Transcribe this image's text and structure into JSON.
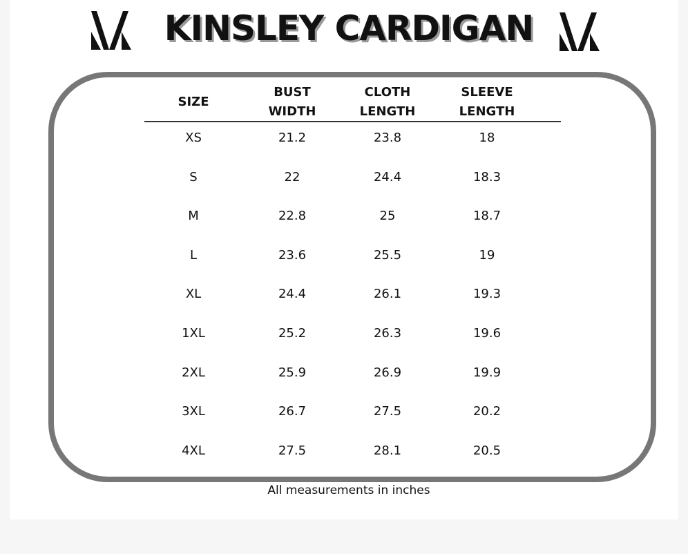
{
  "header": {
    "title": "KINSLEY CARDIGAN"
  },
  "table": {
    "columns": [
      "SIZE",
      "BUST WIDTH",
      "CLOTH LENGTH",
      "SLEEVE LENGTH"
    ],
    "rows": [
      [
        "XS",
        "21.2",
        "23.8",
        "18"
      ],
      [
        "S",
        "22",
        "24.4",
        "18.3"
      ],
      [
        "M",
        "22.8",
        "25",
        "18.7"
      ],
      [
        "L",
        "23.6",
        "25.5",
        "19"
      ],
      [
        "XL",
        "24.4",
        "26.1",
        "19.3"
      ],
      [
        "1XL",
        "25.2",
        "26.3",
        "19.6"
      ],
      [
        "2XL",
        "25.9",
        "26.9",
        "19.9"
      ],
      [
        "3XL",
        "26.7",
        "27.5",
        "20.2"
      ],
      [
        "4XL",
        "27.5",
        "28.1",
        "20.5"
      ]
    ]
  },
  "footer": {
    "note": "All measurements in inches"
  }
}
